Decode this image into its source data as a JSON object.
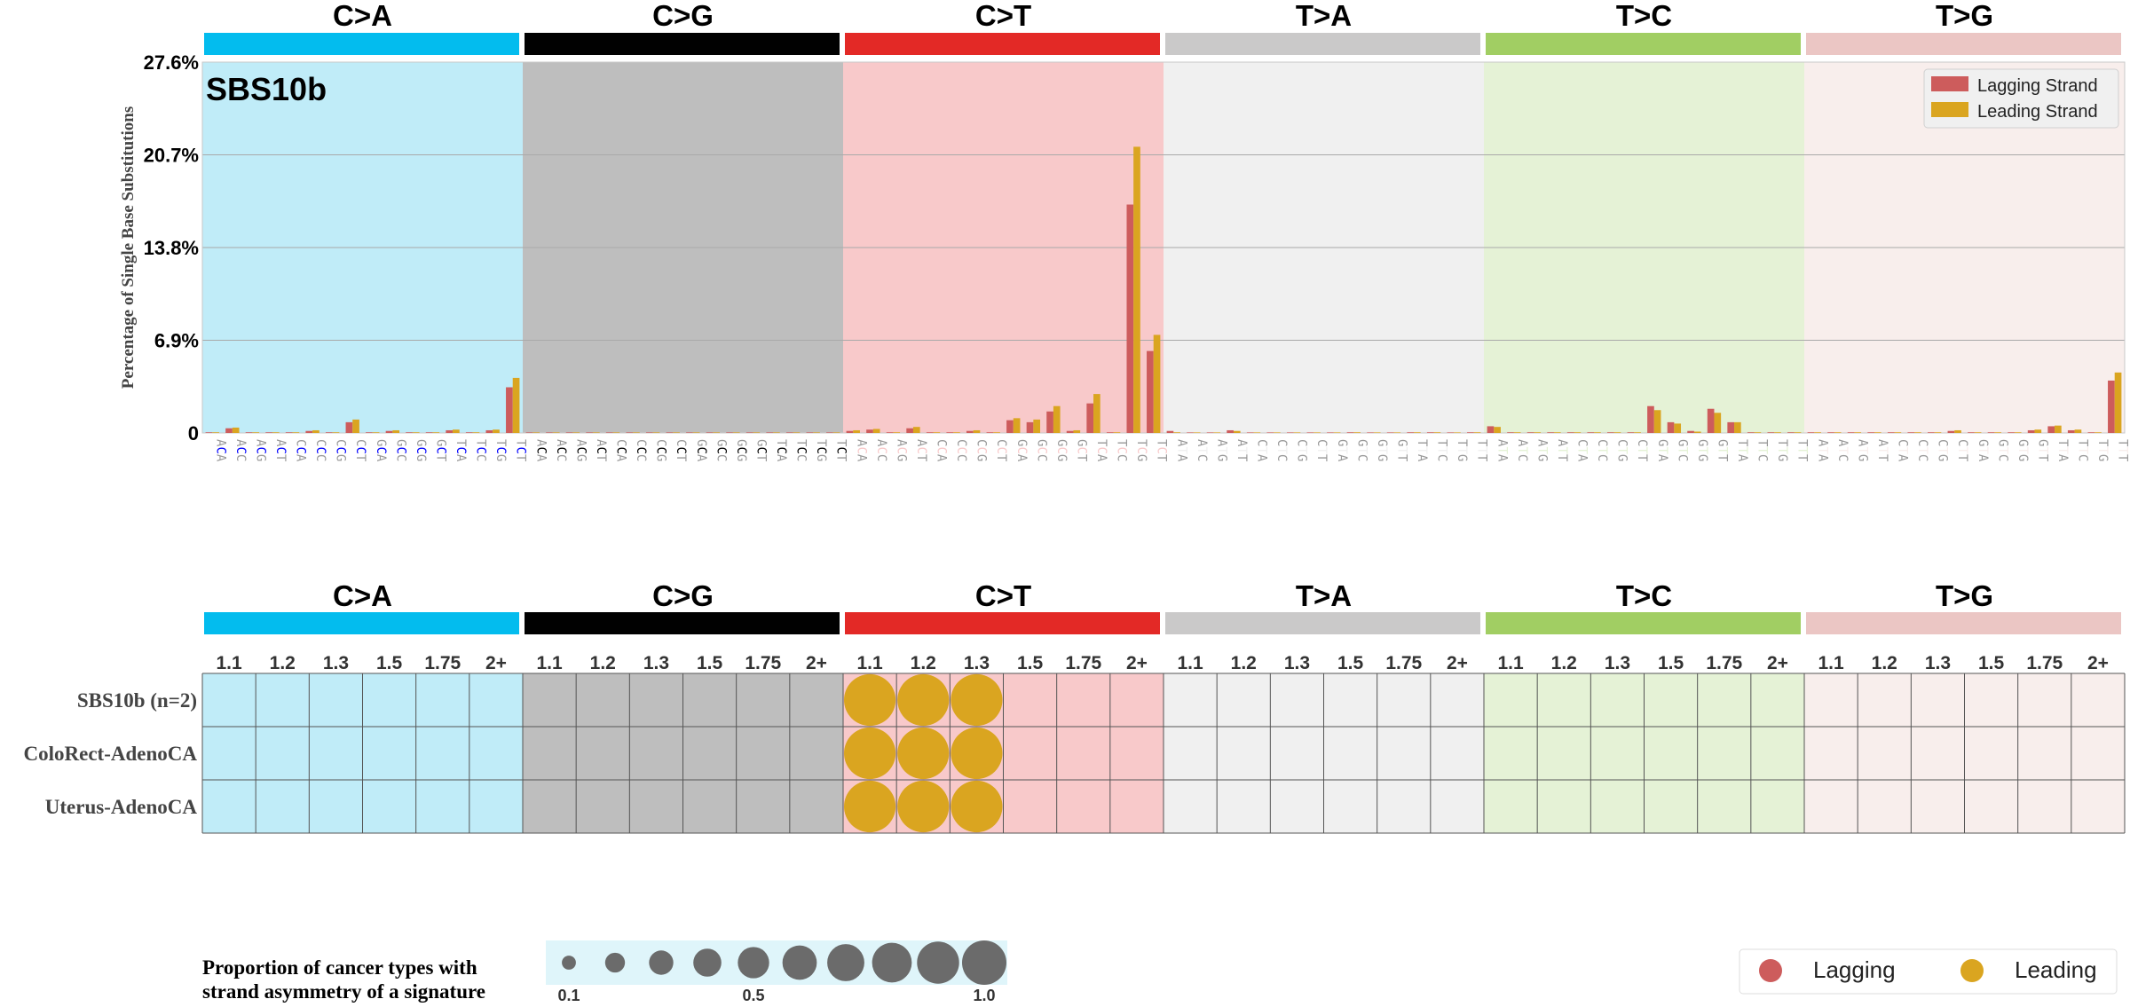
{
  "chart_data": [
    {
      "type": "bar",
      "title": "SBS10b",
      "ylabel": "Percentage of Single Base Substitutions",
      "ylim": [
        0,
        27.6
      ],
      "yticks": [
        "0",
        "6.9%",
        "13.8%",
        "20.7%",
        "27.6%"
      ],
      "grid": true,
      "legend_position": "top-right",
      "mutation_classes": [
        {
          "label": "C>A",
          "color": "#03BCEE",
          "light": "#C0ECF8",
          "ref": "C",
          "sep": "#0000FF"
        },
        {
          "label": "C>G",
          "color": "#010101",
          "light": "#BEBEBE",
          "ref": "C",
          "sep": "#000000"
        },
        {
          "label": "C>T",
          "color": "#E32926",
          "light": "#F8C9CA",
          "ref": "C",
          "sep": "#F8C9CA"
        },
        {
          "label": "T>A",
          "color": "#CAC9C9",
          "light": "#F0F0F0",
          "ref": "T",
          "sep": "#F0F0F0"
        },
        {
          "label": "T>C",
          "color": "#A1CE63",
          "light": "#E5F2D6",
          "ref": "T",
          "sep": "#E5F2D6"
        },
        {
          "label": "T>G",
          "color": "#EBC6C4",
          "light": "#F8EEEC",
          "ref": "T",
          "sep": "#F8EEEC"
        }
      ],
      "series": [
        {
          "name": "Lagging Strand",
          "color": "#CD5C5C",
          "values": [
            0.05,
            0.35,
            0.05,
            0.05,
            0.05,
            0.15,
            0.05,
            0.8,
            0.05,
            0.15,
            0.05,
            0.05,
            0.2,
            0.05,
            0.2,
            3.4,
            0.02,
            0.02,
            0.02,
            0.02,
            0.02,
            0.02,
            0.02,
            0.02,
            0.02,
            0.02,
            0.02,
            0.02,
            0.02,
            0.02,
            0.02,
            0.02,
            0.15,
            0.25,
            0.05,
            0.35,
            0.05,
            0.05,
            0.15,
            0.05,
            0.95,
            0.8,
            1.6,
            0.15,
            2.2,
            0.05,
            17.0,
            6.1,
            0.15,
            0.02,
            0.02,
            0.2,
            0.02,
            0.02,
            0.02,
            0.02,
            0.02,
            0.05,
            0.02,
            0.02,
            0.05,
            0.05,
            0.02,
            0.05,
            0.5,
            0.05,
            0.05,
            0.05,
            0.05,
            0.05,
            0.05,
            0.05,
            2.0,
            0.8,
            0.15,
            1.8,
            0.8,
            0.05,
            0.05,
            0.05,
            0.05,
            0.05,
            0.05,
            0.05,
            0.05,
            0.05,
            0.05,
            0.15,
            0.05,
            0.05,
            0.05,
            0.2,
            0.5,
            0.2,
            0.05,
            3.9
          ]
        },
        {
          "name": "Leading Strand",
          "color": "#DAA520",
          "values": [
            0.05,
            0.4,
            0.05,
            0.05,
            0.05,
            0.2,
            0.05,
            1.0,
            0.05,
            0.2,
            0.05,
            0.05,
            0.25,
            0.05,
            0.25,
            4.1,
            0.02,
            0.02,
            0.02,
            0.02,
            0.02,
            0.02,
            0.02,
            0.02,
            0.02,
            0.02,
            0.02,
            0.02,
            0.02,
            0.02,
            0.02,
            0.02,
            0.2,
            0.3,
            0.05,
            0.45,
            0.05,
            0.05,
            0.2,
            0.05,
            1.1,
            1.0,
            2.0,
            0.2,
            2.9,
            0.05,
            21.3,
            7.3,
            0.05,
            0.02,
            0.02,
            0.15,
            0.02,
            0.02,
            0.02,
            0.02,
            0.02,
            0.05,
            0.02,
            0.02,
            0.05,
            0.05,
            0.02,
            0.05,
            0.45,
            0.05,
            0.05,
            0.05,
            0.05,
            0.05,
            0.05,
            0.05,
            1.7,
            0.7,
            0.1,
            1.5,
            0.8,
            0.05,
            0.05,
            0.05,
            0.05,
            0.05,
            0.05,
            0.05,
            0.05,
            0.05,
            0.05,
            0.2,
            0.05,
            0.05,
            0.05,
            0.25,
            0.55,
            0.25,
            0.05,
            4.5
          ]
        }
      ]
    },
    {
      "type": "scatter",
      "subtype": "bubble-grid",
      "mutation_classes": [
        "C>A",
        "C>G",
        "C>T",
        "T>A",
        "T>C",
        "T>G"
      ],
      "ratio_bins": [
        "1.1",
        "1.2",
        "1.3",
        "1.5",
        "1.75",
        "2+"
      ],
      "rows": [
        "SBS10b (n=2)",
        "ColoRect-AdenoCA",
        "Uterus-AdenoCA"
      ],
      "bubble_color": "#DAA520",
      "bubbles": [
        {
          "row": 0,
          "class": 2,
          "bin": 0,
          "proportion": 1.0,
          "strand": "Leading"
        },
        {
          "row": 0,
          "class": 2,
          "bin": 1,
          "proportion": 1.0,
          "strand": "Leading"
        },
        {
          "row": 0,
          "class": 2,
          "bin": 2,
          "proportion": 1.0,
          "strand": "Leading"
        },
        {
          "row": 1,
          "class": 2,
          "bin": 0,
          "proportion": 1.0,
          "strand": "Leading"
        },
        {
          "row": 1,
          "class": 2,
          "bin": 1,
          "proportion": 1.0,
          "strand": "Leading"
        },
        {
          "row": 1,
          "class": 2,
          "bin": 2,
          "proportion": 1.0,
          "strand": "Leading"
        },
        {
          "row": 2,
          "class": 2,
          "bin": 0,
          "proportion": 1.0,
          "strand": "Leading"
        },
        {
          "row": 2,
          "class": 2,
          "bin": 1,
          "proportion": 1.0,
          "strand": "Leading"
        },
        {
          "row": 2,
          "class": 2,
          "bin": 2,
          "proportion": 1.0,
          "strand": "Leading"
        }
      ],
      "size_legend": {
        "title_line1": "Proportion of cancer types with",
        "title_line2": "strand asymmetry of a signature",
        "values": [
          0.1,
          0.2,
          0.3,
          0.4,
          0.5,
          0.6,
          0.7,
          0.8,
          0.9,
          1.0
        ],
        "labels": [
          "0.1",
          "0.5",
          "1.0"
        ]
      },
      "strand_legend": [
        {
          "name": "Lagging",
          "color": "#CD5C5C"
        },
        {
          "name": "Leading",
          "color": "#DAA520"
        }
      ]
    }
  ]
}
